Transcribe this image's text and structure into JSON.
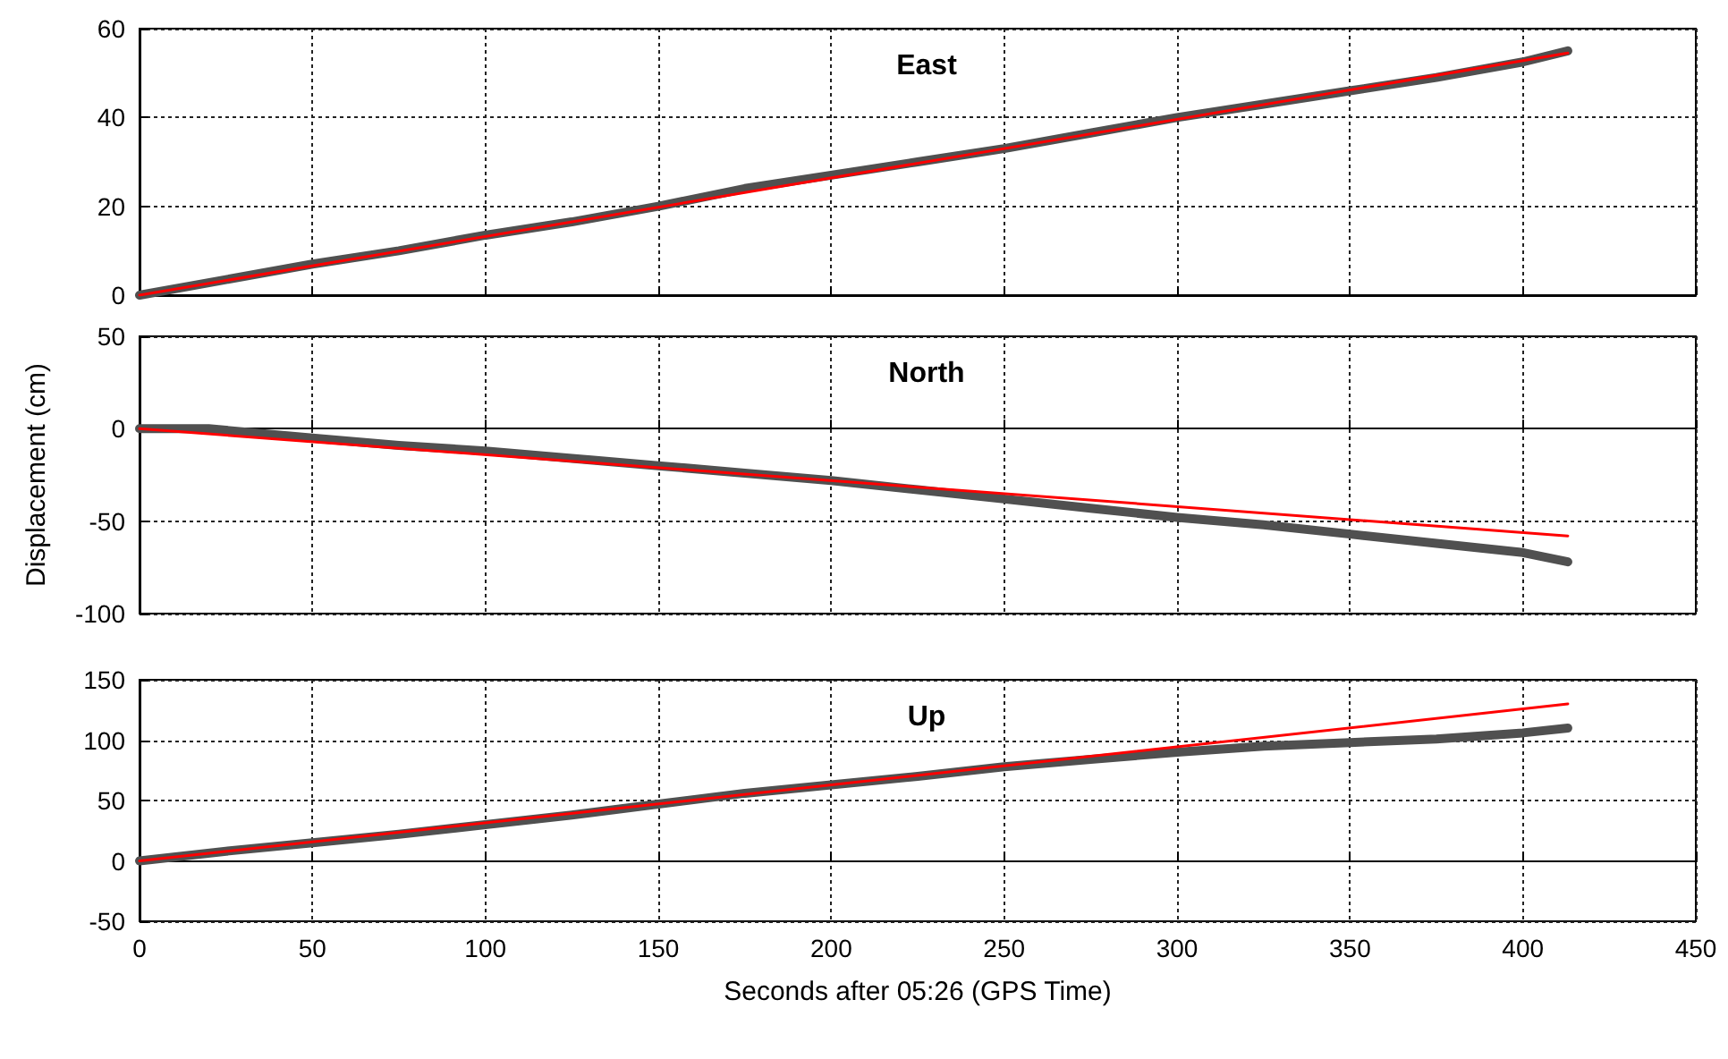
{
  "chart_data": [
    {
      "type": "line",
      "title": "East",
      "xlim": [
        0,
        450
      ],
      "xticks": [
        0,
        50,
        100,
        150,
        200,
        250,
        300,
        350,
        400,
        450
      ],
      "ylim": [
        0,
        60
      ],
      "yticks": [
        0,
        20,
        40,
        60
      ],
      "grid": true,
      "tick_labels": "y",
      "marker": "none",
      "series": [
        {
          "color": "#505050",
          "x": [
            0,
            25,
            50,
            75,
            100,
            125,
            150,
            175,
            200,
            225,
            250,
            275,
            300,
            325,
            350,
            375,
            400,
            413
          ],
          "values": [
            0,
            3.5,
            7,
            10,
            13.5,
            16.5,
            20,
            24,
            27,
            30,
            33,
            36.5,
            40,
            43,
            46,
            49,
            52.5,
            55
          ]
        },
        {
          "color": "#ff0000",
          "x": [
            0,
            413
          ],
          "values": [
            0,
            54.5
          ]
        }
      ]
    },
    {
      "type": "line",
      "title": "North",
      "ylabel": "Displacement (cm)",
      "xlim": [
        0,
        450
      ],
      "xticks": [
        0,
        50,
        100,
        150,
        200,
        250,
        300,
        350,
        400,
        450
      ],
      "ylim": [
        -100,
        50
      ],
      "yticks": [
        -100,
        -50,
        0,
        50
      ],
      "grid": true,
      "tick_labels": "y",
      "marker": "none",
      "series": [
        {
          "color": "#505050",
          "x": [
            0,
            20,
            50,
            75,
            100,
            125,
            150,
            175,
            200,
            225,
            250,
            275,
            300,
            325,
            350,
            375,
            400,
            413
          ],
          "values": [
            0,
            0,
            -5,
            -9,
            -12,
            -16,
            -20,
            -24,
            -28,
            -33,
            -38,
            -43,
            -48,
            -52,
            -57,
            -62,
            -67,
            -72
          ]
        },
        {
          "color": "#ff0000",
          "x": [
            0,
            413
          ],
          "values": [
            0,
            -58
          ]
        }
      ]
    },
    {
      "type": "line",
      "title": "Up",
      "xlabel": "Seconds after 05:26 (GPS Time)",
      "xlim": [
        0,
        450
      ],
      "xticks": [
        0,
        50,
        100,
        150,
        200,
        250,
        300,
        350,
        400,
        450
      ],
      "ylim": [
        -50,
        150
      ],
      "yticks": [
        -50,
        0,
        50,
        100,
        150
      ],
      "grid": true,
      "marker": "none",
      "series": [
        {
          "color": "#505050",
          "x": [
            0,
            25,
            50,
            75,
            100,
            125,
            150,
            175,
            200,
            225,
            250,
            275,
            300,
            325,
            350,
            375,
            400,
            413
          ],
          "values": [
            0,
            8,
            15,
            22,
            30,
            38,
            47,
            56,
            63,
            70,
            78,
            84,
            90,
            95,
            98,
            101,
            106,
            110
          ]
        },
        {
          "color": "#ff0000",
          "x": [
            0,
            413
          ],
          "values": [
            0,
            130
          ]
        }
      ]
    }
  ]
}
